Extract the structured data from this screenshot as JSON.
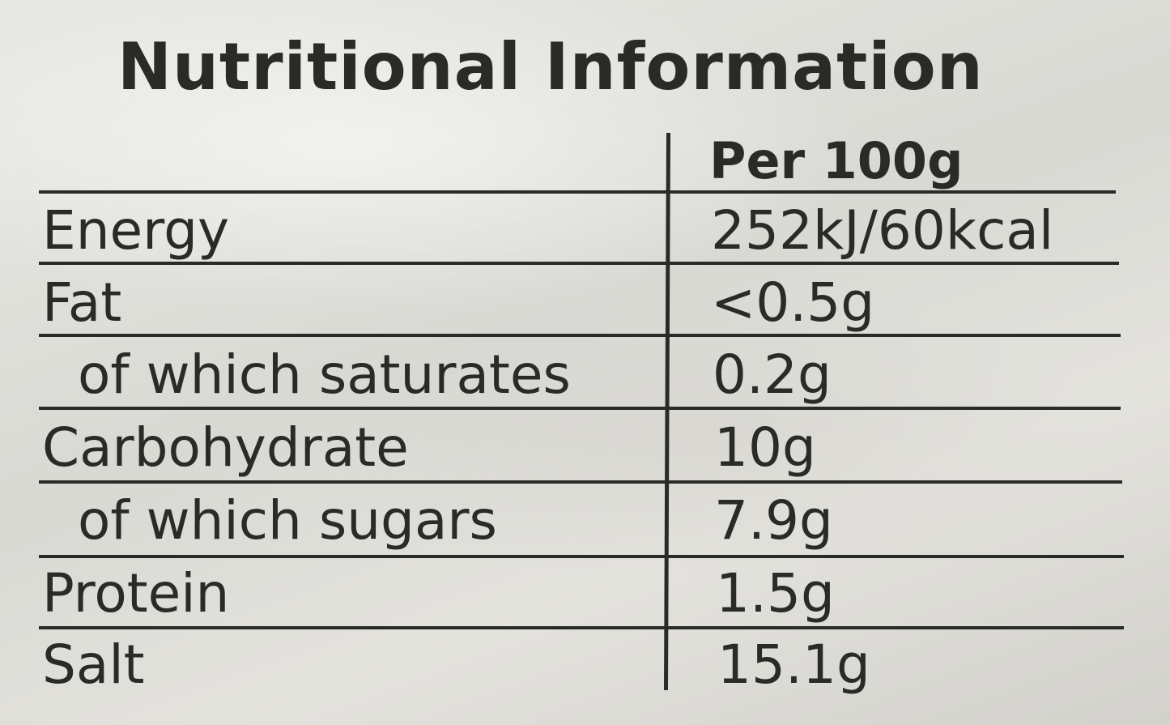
{
  "title": "Nutritional Information",
  "column_header": "Per 100g",
  "rows": [
    {
      "label": "Energy",
      "value": "252kJ/60kcal"
    },
    {
      "label": "Fat",
      "value": "<0.5g"
    },
    {
      "label": "of which saturates",
      "value": "0.2g"
    },
    {
      "label": "Carbohydrate",
      "value": "10g"
    },
    {
      "label": "of which sugars",
      "value": "7.9g"
    },
    {
      "label": "Protein",
      "value": "1.5g"
    },
    {
      "label": "Salt",
      "value": "15.1g"
    }
  ]
}
